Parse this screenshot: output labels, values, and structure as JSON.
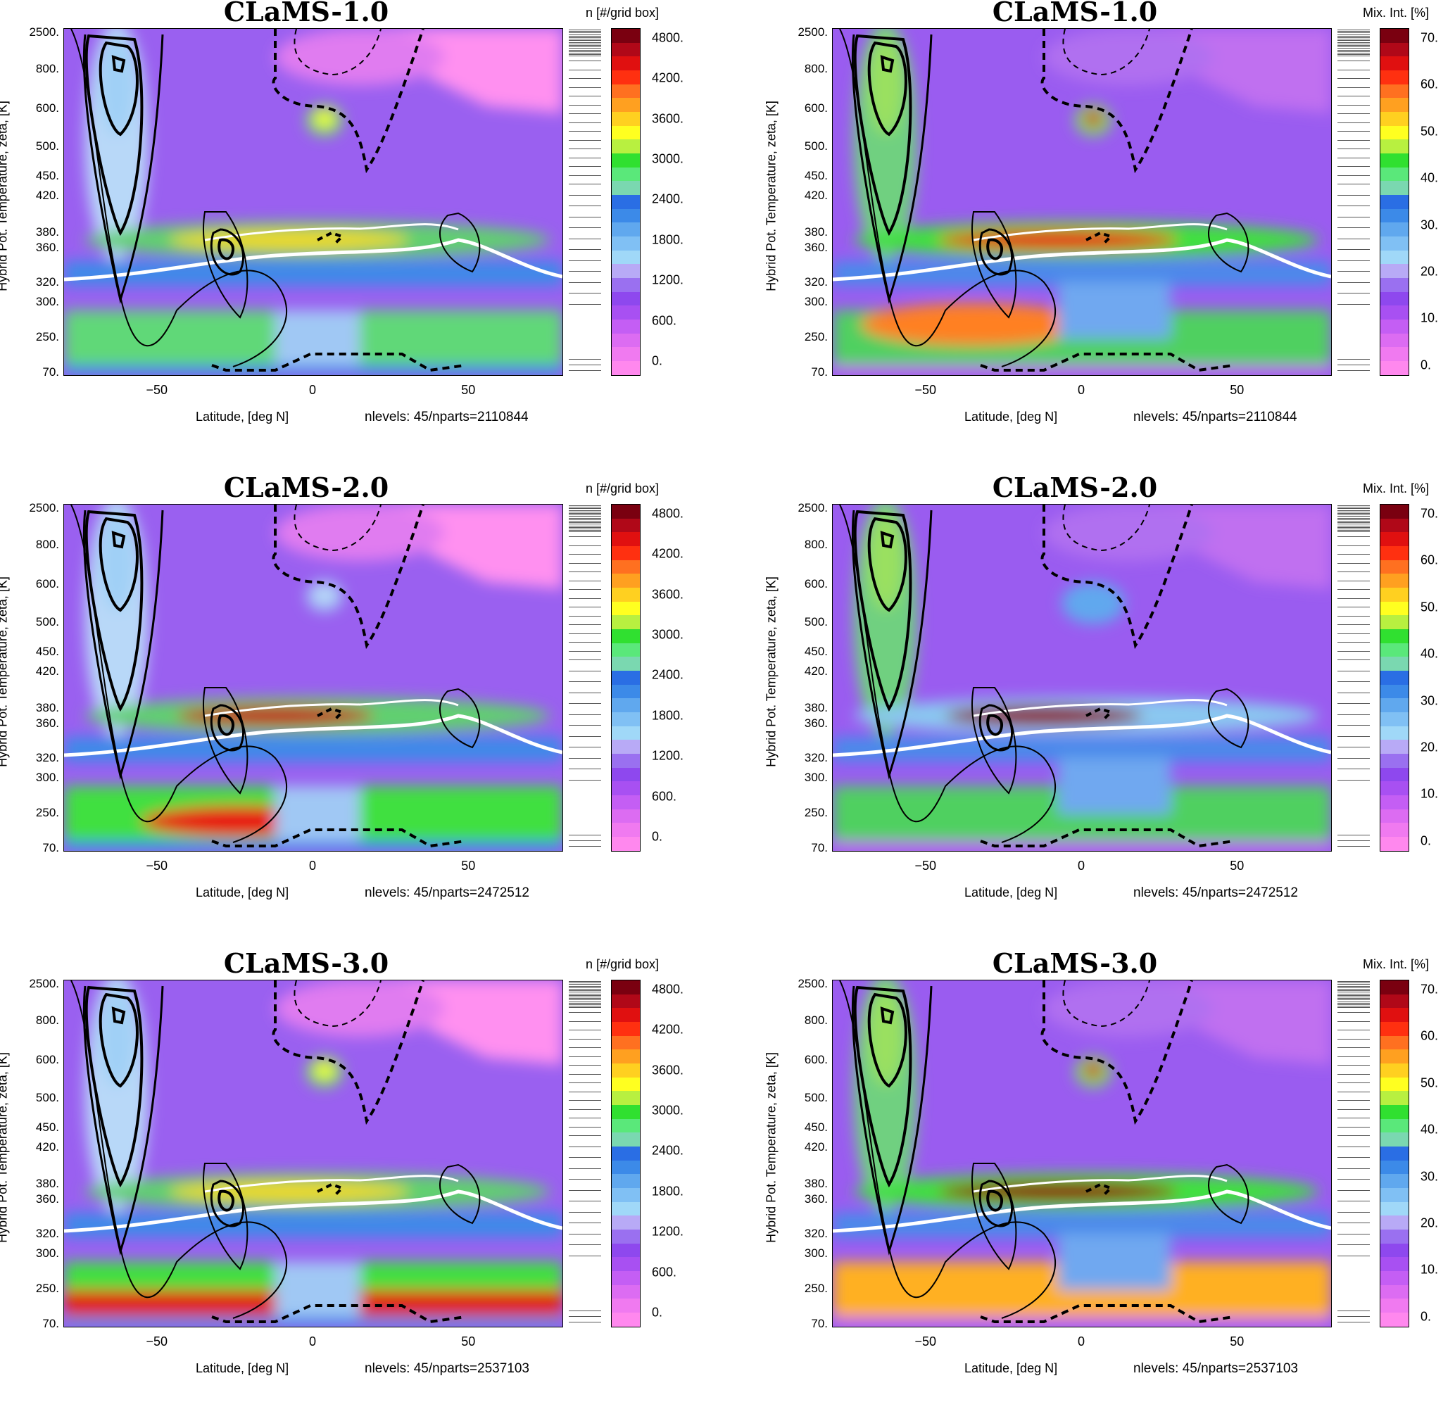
{
  "chart_data": [
    {
      "type": "heatmap",
      "panel": "p11",
      "title": "CLaMS-1.0",
      "xlabel": "Latitude, [deg N]",
      "ylabel": "Hybrid Pot. Temperature, zeta, [K]",
      "xlim": [
        -80,
        80
      ],
      "xticks": [
        "-50",
        "0",
        "50"
      ],
      "yticks": [
        "2500.",
        "800.",
        "600.",
        "500.",
        "450.",
        "420.",
        "380.",
        "360.",
        "320.",
        "300.",
        "250.",
        "70."
      ],
      "colorbar_title": "n [#/grid box]",
      "colorbar_ticks": [
        "4800.",
        "4200.",
        "3600.",
        "3000.",
        "2400.",
        "1800.",
        "1200.",
        "600.",
        "0."
      ],
      "annotation": "nlevels: 45/nparts=2110844"
    },
    {
      "type": "heatmap",
      "panel": "p12",
      "title": "CLaMS-1.0",
      "xlabel": "Latitude, [deg N]",
      "ylabel": "Hybrid Pot. Temperature, zeta, [K]",
      "xlim": [
        -80,
        80
      ],
      "xticks": [
        "-50",
        "0",
        "50"
      ],
      "yticks": [
        "2500.",
        "800.",
        "600.",
        "500.",
        "450.",
        "420.",
        "380.",
        "360.",
        "320.",
        "300.",
        "250.",
        "70."
      ],
      "colorbar_title": "Mix. Int. [%]",
      "colorbar_ticks": [
        "70.",
        "60.",
        "50.",
        "40.",
        "30.",
        "20.",
        "10.",
        "0."
      ],
      "annotation": "nlevels: 45/nparts=2110844"
    },
    {
      "type": "heatmap",
      "panel": "p21",
      "title": "CLaMS-2.0",
      "xlabel": "Latitude, [deg N]",
      "ylabel": "Hybrid Pot. Temperature, zeta, [K]",
      "xlim": [
        -80,
        80
      ],
      "xticks": [
        "-50",
        "0",
        "50"
      ],
      "yticks": [
        "2500.",
        "800.",
        "600.",
        "500.",
        "450.",
        "420.",
        "380.",
        "360.",
        "320.",
        "300.",
        "250.",
        "70."
      ],
      "colorbar_title": "n [#/grid box]",
      "colorbar_ticks": [
        "4800.",
        "4200.",
        "3600.",
        "3000.",
        "2400.",
        "1800.",
        "1200.",
        "600.",
        "0."
      ],
      "annotation": "nlevels: 45/nparts=2472512"
    },
    {
      "type": "heatmap",
      "panel": "p22",
      "title": "CLaMS-2.0",
      "xlabel": "Latitude, [deg N]",
      "ylabel": "Hybrid Pot. Temperature, zeta, [K]",
      "xlim": [
        -80,
        80
      ],
      "xticks": [
        "-50",
        "0",
        "50"
      ],
      "yticks": [
        "2500.",
        "800.",
        "600.",
        "500.",
        "450.",
        "420.",
        "380.",
        "360.",
        "320.",
        "300.",
        "250.",
        "70."
      ],
      "colorbar_title": "Mix. Int. [%]",
      "colorbar_ticks": [
        "70.",
        "60.",
        "50.",
        "40.",
        "30.",
        "20.",
        "10.",
        "0."
      ],
      "annotation": "nlevels: 45/nparts=2472512"
    },
    {
      "type": "heatmap",
      "panel": "p31",
      "title": "CLaMS-3.0",
      "xlabel": "Latitude, [deg N]",
      "ylabel": "Hybrid Pot. Temperature, zeta, [K]",
      "xlim": [
        -80,
        80
      ],
      "xticks": [
        "-50",
        "0",
        "50"
      ],
      "yticks": [
        "2500.",
        "800.",
        "600.",
        "500.",
        "450.",
        "420.",
        "380.",
        "360.",
        "320.",
        "300.",
        "250.",
        "70."
      ],
      "colorbar_title": "n [#/grid box]",
      "colorbar_ticks": [
        "4800.",
        "4200.",
        "3600.",
        "3000.",
        "2400.",
        "1800.",
        "1200.",
        "600.",
        "0."
      ],
      "annotation": "nlevels: 45/nparts=2537103"
    },
    {
      "type": "heatmap",
      "panel": "p32",
      "title": "CLaMS-3.0",
      "xlabel": "Latitude, [deg N]",
      "ylabel": "Hybrid Pot. Temperature, zeta, [K]",
      "xlim": [
        -80,
        80
      ],
      "xticks": [
        "-50",
        "0",
        "50"
      ],
      "yticks": [
        "2500.",
        "800.",
        "600.",
        "500.",
        "450.",
        "420.",
        "380.",
        "360.",
        "320.",
        "300.",
        "250.",
        "70."
      ],
      "colorbar_title": "Mix. Int. [%]",
      "colorbar_ticks": [
        "70.",
        "60.",
        "50.",
        "40.",
        "30.",
        "20.",
        "10.",
        "0."
      ],
      "annotation": "nlevels: 45/nparts=2537103"
    }
  ],
  "colors": {
    "palette": [
      "#ff88ee",
      "#f07af0",
      "#dc6cf2",
      "#c45ef4",
      "#a850f2",
      "#8e48ee",
      "#9a70f0",
      "#b8aaf6",
      "#a0d8f8",
      "#80c0f4",
      "#60a8ee",
      "#3c8ae8",
      "#2a6ee4",
      "#7ad8b0",
      "#5ae87a",
      "#30e030",
      "#b8f040",
      "#ffff20",
      "#ffd020",
      "#ffa020",
      "#ff7020",
      "#ff3010",
      "#e01010",
      "#b00818",
      "#7a0010"
    ],
    "background_field": "#9a60f0",
    "upper_right": "#ff88ee",
    "tropopause_line": "#ffffff",
    "contour": "#000000"
  }
}
